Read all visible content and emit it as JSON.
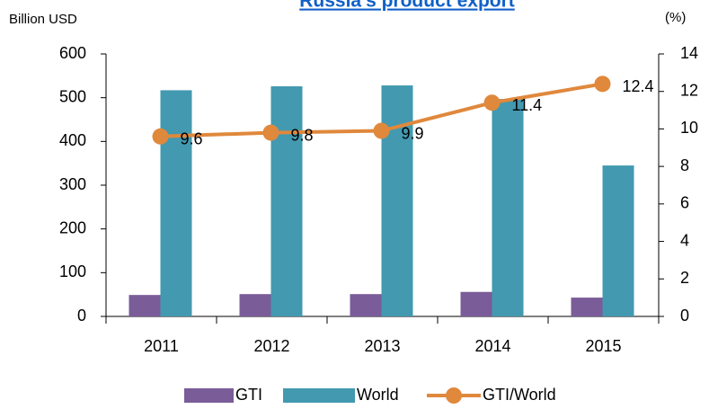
{
  "chart_data": {
    "type": "bar-line",
    "title": "Russia's product export",
    "y_label": "Billion USD",
    "y2_label": "(%)",
    "categories": [
      "2011",
      "2012",
      "2013",
      "2014",
      "2015"
    ],
    "series": [
      {
        "name": "GTI",
        "type": "bar",
        "color": "#7a5c99",
        "values": [
          49,
          51,
          51,
          56,
          43
        ]
      },
      {
        "name": "World",
        "type": "bar",
        "color": "#4299b0",
        "values": [
          517,
          526,
          528,
          497,
          345
        ]
      },
      {
        "name": "GTI/World",
        "type": "line",
        "axis": "y2",
        "color": "#e0883c",
        "values": [
          9.6,
          9.8,
          9.9,
          11.4,
          12.4
        ]
      }
    ],
    "ylim": [
      0,
      600
    ],
    "yticks": [
      0,
      100,
      200,
      300,
      400,
      500,
      600
    ],
    "y2lim": [
      0,
      14
    ],
    "y2ticks": [
      0,
      2,
      4,
      6,
      8,
      10,
      12,
      14
    ],
    "grid": false,
    "legend": "bottom"
  }
}
